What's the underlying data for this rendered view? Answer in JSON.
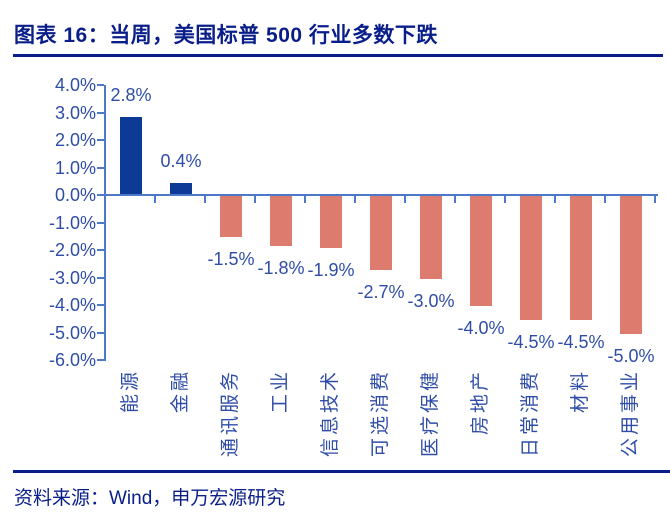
{
  "header": {
    "title": "图表 16：当周，美国标普 500 行业多数下跌"
  },
  "footer": {
    "source": "资料来源：Wind，申万宏源研究"
  },
  "colors": {
    "heading": "#0A1E8A",
    "rule": "#0A1E8A"
  },
  "chart_data": {
    "type": "bar",
    "title": "当周，美国标普 500 行业多数下跌",
    "categories": [
      "能源",
      "金融",
      "通讯服务",
      "工业",
      "信息技术",
      "可选消费",
      "医疗保健",
      "房地产",
      "日常消费",
      "材料",
      "公用事业"
    ],
    "values": [
      2.8,
      0.4,
      -1.5,
      -1.8,
      -1.9,
      -2.7,
      -3.0,
      -4.0,
      -4.5,
      -4.5,
      -5.0
    ],
    "labels": [
      "2.8%",
      "0.4%",
      "-1.5%",
      "-1.8%",
      "-1.9%",
      "-2.7%",
      "-3.0%",
      "-4.0%",
      "-4.5%",
      "-4.5%",
      "-5.0%"
    ],
    "y_tick_labels": [
      "4.0%",
      "3.0%",
      "2.0%",
      "1.0%",
      "0.0%",
      "-1.0%",
      "-2.0%",
      "-3.0%",
      "-4.0%",
      "-5.0%",
      "-6.0%"
    ],
    "ylim": [
      -6.0,
      4.0
    ],
    "y_step": 1.0,
    "xlabel": "",
    "ylabel": "",
    "grid": false,
    "legend": "none",
    "colors": {
      "positive_bar": "#0C3A96",
      "negative_bar": "#DC7B6E",
      "axis": "#4E79C8",
      "tick_label": "#2F4DA7",
      "data_label": "#2F4DA7"
    }
  }
}
